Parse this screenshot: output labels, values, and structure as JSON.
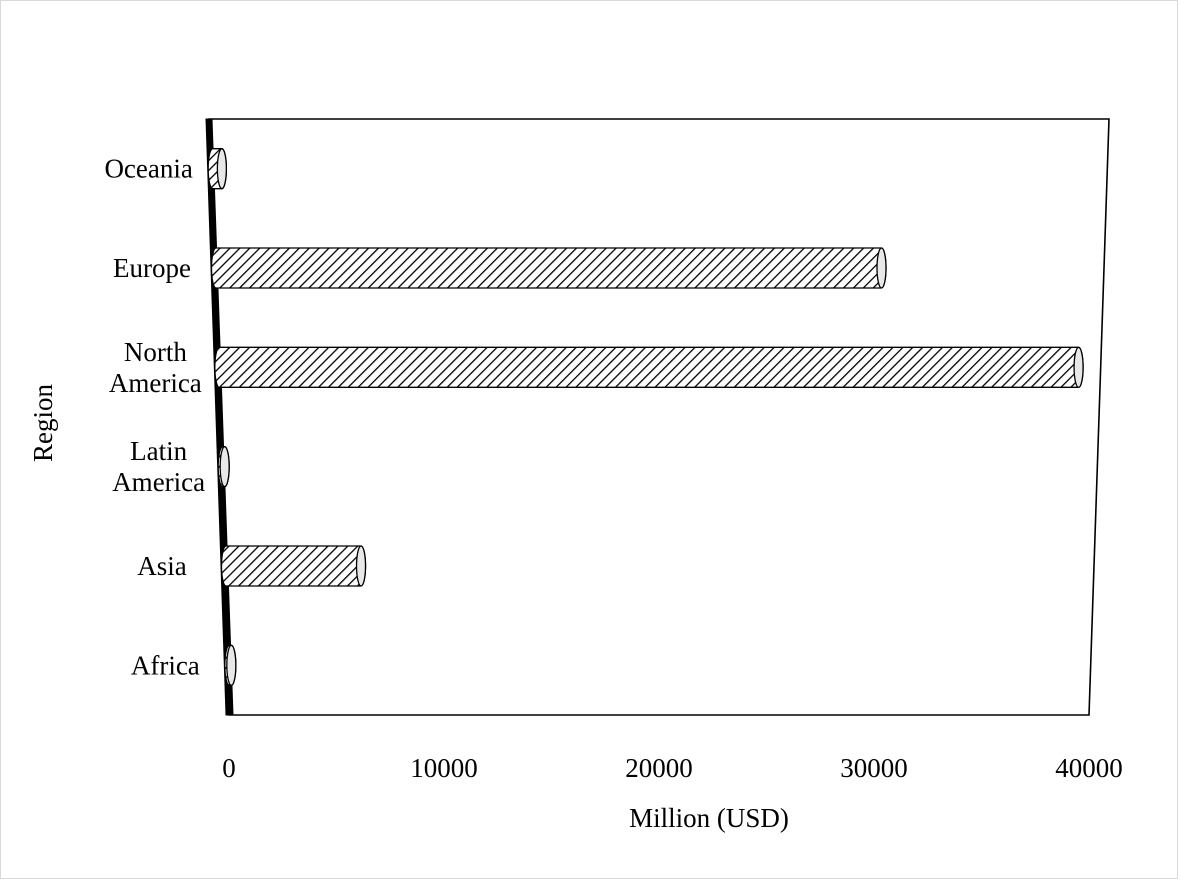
{
  "chart_data": {
    "type": "bar",
    "orientation": "horizontal",
    "style": "3d-cylinder-hatched",
    "categories": [
      "Oceania",
      "Europe",
      "North America",
      "Latin America",
      "Asia",
      "Africa"
    ],
    "category_lines": [
      [
        "Oceania"
      ],
      [
        "Europe"
      ],
      [
        "North",
        "America"
      ],
      [
        "Latin",
        "America"
      ],
      [
        "Asia"
      ],
      [
        "Africa"
      ]
    ],
    "values": [
      500,
      30000,
      39000,
      50,
      6300,
      50
    ],
    "xlabel": "Million (USD)",
    "ylabel": "Region",
    "xlim": [
      0,
      40000
    ],
    "xticks": [
      "0",
      "10000",
      "20000",
      "30000",
      "40000"
    ],
    "xtick_values": [
      0,
      10000,
      20000,
      30000,
      40000
    ],
    "grid": false,
    "legend": "none",
    "colors": {
      "bar_fill": "#ffffff",
      "hatch": "#000000",
      "wall": "#000000",
      "axis": "#000000"
    }
  }
}
